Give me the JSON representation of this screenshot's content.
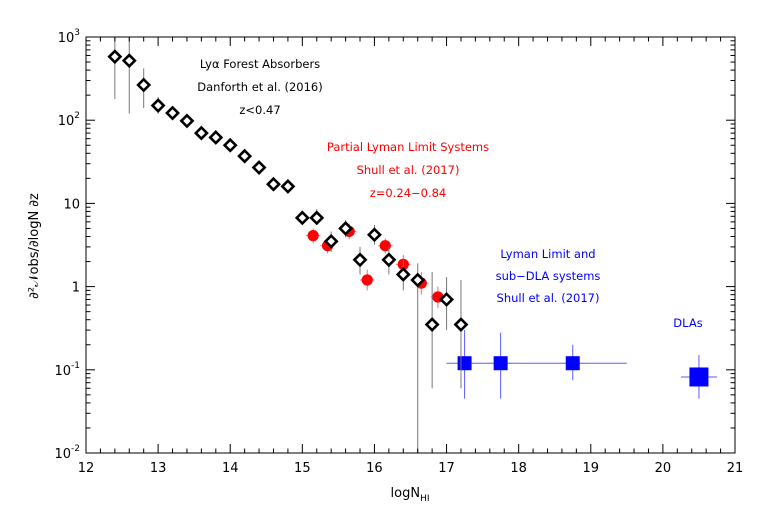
{
  "chart_data": {
    "type": "scatter",
    "title": "",
    "xlabel": "logN",
    "xlabel_sub": "HI",
    "ylabel": "∂²𝒩obs/∂logN ∂z",
    "xlim": [
      12,
      21
    ],
    "ylim": [
      0.01,
      1000
    ],
    "yscale": "log",
    "grid": false,
    "x_ticks": [
      "12",
      "13",
      "14",
      "15",
      "16",
      "17",
      "18",
      "19",
      "20",
      "21"
    ],
    "y_ticks": [
      {
        "base": "10",
        "exp": "-2",
        "value": 0.01
      },
      {
        "base": "10",
        "exp": "-1",
        "value": 0.1
      },
      {
        "base": "1",
        "exp": "",
        "value": 1
      },
      {
        "base": "10",
        "exp": "",
        "value": 10
      },
      {
        "base": "10",
        "exp": "2",
        "value": 100
      },
      {
        "base": "10",
        "exp": "3",
        "value": 1000
      }
    ],
    "series": [
      {
        "name": "Lyα Forest Absorbers (Danforth et al. 2016)",
        "marker": "diamond-open",
        "color": "#000000",
        "points": [
          {
            "x": 12.4,
            "y": 580,
            "ylo": 180,
            "yhi": 1000
          },
          {
            "x": 12.6,
            "y": 520,
            "ylo": 120,
            "yhi": 1000
          },
          {
            "x": 12.8,
            "y": 265,
            "ylo": 140,
            "yhi": 420
          },
          {
            "x": 13.0,
            "y": 150,
            "ylo": 120,
            "yhi": 190
          },
          {
            "x": 13.2,
            "y": 122,
            "ylo": 110,
            "yhi": 135
          },
          {
            "x": 13.4,
            "y": 98,
            "ylo": 90,
            "yhi": 107
          },
          {
            "x": 13.6,
            "y": 70,
            "ylo": 65,
            "yhi": 76
          },
          {
            "x": 13.8,
            "y": 62,
            "ylo": 57,
            "yhi": 67
          },
          {
            "x": 14.0,
            "y": 50,
            "ylo": 46,
            "yhi": 55
          },
          {
            "x": 14.2,
            "y": 37,
            "ylo": 34,
            "yhi": 41
          },
          {
            "x": 14.4,
            "y": 27,
            "ylo": 25,
            "yhi": 30
          },
          {
            "x": 14.6,
            "y": 17,
            "ylo": 15,
            "yhi": 19
          },
          {
            "x": 14.8,
            "y": 16,
            "ylo": 14.5,
            "yhi": 17.5
          },
          {
            "x": 15.0,
            "y": 6.7,
            "ylo": 5.6,
            "yhi": 8
          },
          {
            "x": 15.2,
            "y": 6.7,
            "ylo": 5.5,
            "yhi": 8.5
          },
          {
            "x": 15.4,
            "y": 3.5,
            "ylo": 2.6,
            "yhi": 4.6
          },
          {
            "x": 15.6,
            "y": 5,
            "ylo": 3.9,
            "yhi": 6.3
          },
          {
            "x": 15.8,
            "y": 2.1,
            "ylo": 1.4,
            "yhi": 3
          },
          {
            "x": 16.0,
            "y": 4.2,
            "ylo": 3.2,
            "yhi": 5.5
          },
          {
            "x": 16.2,
            "y": 2.1,
            "ylo": 1.4,
            "yhi": 3
          },
          {
            "x": 16.4,
            "y": 1.4,
            "ylo": 0.9,
            "yhi": 2.1
          },
          {
            "x": 16.6,
            "y": 1.2,
            "ylo": 0.01,
            "yhi": 1.9
          },
          {
            "x": 16.8,
            "y": 0.35,
            "ylo": 0.06,
            "yhi": 1.5
          },
          {
            "x": 17.0,
            "y": 0.7,
            "ylo": 0.3,
            "yhi": 1.3
          },
          {
            "x": 17.2,
            "y": 0.35,
            "ylo": 0.06,
            "yhi": 1.2
          }
        ]
      },
      {
        "name": "Partial Lyman Limit Systems (Shull et al. 2017)",
        "marker": "circle-filled",
        "color": "#ff0000",
        "points": [
          {
            "x": 15.15,
            "y": 4.1,
            "xlo": 15.05,
            "xhi": 15.25,
            "ylo": 3.3,
            "yhi": 5
          },
          {
            "x": 15.35,
            "y": 3.1,
            "xlo": 15.25,
            "xhi": 15.45,
            "ylo": 2.5,
            "yhi": 3.8
          },
          {
            "x": 15.65,
            "y": 4.6,
            "xlo": 15.55,
            "xhi": 15.75,
            "ylo": 3.7,
            "yhi": 5.7
          },
          {
            "x": 15.9,
            "y": 1.2,
            "xlo": 15.8,
            "xhi": 16.0,
            "ylo": 0.9,
            "yhi": 1.6
          },
          {
            "x": 16.15,
            "y": 3.1,
            "xlo": 16.05,
            "xhi": 16.25,
            "ylo": 2.5,
            "yhi": 3.8
          },
          {
            "x": 16.4,
            "y": 1.85,
            "xlo": 16.3,
            "xhi": 16.5,
            "ylo": 1.4,
            "yhi": 2.4
          },
          {
            "x": 16.65,
            "y": 1.1,
            "xlo": 16.55,
            "xhi": 16.75,
            "ylo": 0.8,
            "yhi": 1.5
          },
          {
            "x": 16.88,
            "y": 0.75,
            "xlo": 16.78,
            "xhi": 16.98,
            "ylo": 0.55,
            "yhi": 1.0
          }
        ]
      },
      {
        "name": "Lyman Limit and sub-DLA systems (Shull et al. 2017)",
        "marker": "square-filled",
        "color": "#0000ff",
        "points": [
          {
            "x": 17.25,
            "y": 0.12,
            "xlo": 17.0,
            "xhi": 17.5,
            "ylo": 0.045,
            "yhi": 0.3
          },
          {
            "x": 17.75,
            "y": 0.12,
            "xlo": 17.5,
            "xhi": 18.0,
            "ylo": 0.045,
            "yhi": 0.28
          },
          {
            "x": 18.75,
            "y": 0.12,
            "xlo": 18.0,
            "xhi": 19.5,
            "ylo": 0.075,
            "yhi": 0.2
          }
        ]
      },
      {
        "name": "DLAs",
        "marker": "square-filled-large",
        "color": "#0000ff",
        "points": [
          {
            "x": 20.5,
            "y": 0.082,
            "xlo": 20.25,
            "xhi": 20.75,
            "ylo": 0.045,
            "yhi": 0.15
          }
        ]
      }
    ],
    "annotations": [
      {
        "lines": [
          "Lyα Forest Absorbers",
          "Danforth et al. (2016)",
          "z<0.47"
        ],
        "color": "#000000"
      },
      {
        "lines": [
          "Partial Lyman Limit Systems",
          "Shull et al. (2017)",
          "z=0.24−0.84"
        ],
        "color": "#ff0000"
      },
      {
        "lines": [
          "Lyman Limit and",
          "sub−DLA systems",
          "Shull et al. (2017)"
        ],
        "color": "#0000ff"
      },
      {
        "lines": [
          "DLAs"
        ],
        "color": "#0000ff"
      }
    ]
  }
}
